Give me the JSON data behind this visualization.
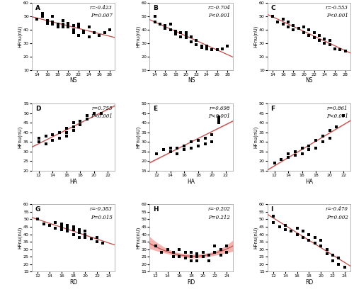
{
  "panels": [
    {
      "label": "A",
      "r": -0.423,
      "p": "P=0.007",
      "xlabel": "NS",
      "ylabel": "HFnu(nU)",
      "xlim": [
        13,
        29
      ],
      "ylim": [
        10,
        60
      ],
      "xticks": [
        14,
        16,
        18,
        20,
        22,
        24,
        26,
        28
      ],
      "yticks": [
        10,
        20,
        30,
        40,
        50,
        60
      ],
      "x": [
        14,
        15,
        15,
        16,
        16,
        17,
        17,
        17,
        18,
        18,
        19,
        19,
        19,
        20,
        20,
        20,
        21,
        21,
        21,
        22,
        22,
        22,
        23,
        23,
        24,
        24,
        25,
        26,
        27,
        28
      ],
      "y": [
        48,
        50,
        52,
        45,
        47,
        46,
        44,
        50,
        42,
        44,
        42,
        47,
        44,
        43,
        42,
        45,
        40,
        43,
        38,
        44,
        42,
        36,
        39,
        38,
        42,
        35,
        38,
        36,
        38,
        40
      ]
    },
    {
      "label": "B",
      "r": -0.704,
      "p": "P<0.001",
      "xlabel": "NS",
      "ylabel": "HFnu(nU)",
      "xlim": [
        13,
        29
      ],
      "ylim": [
        10,
        60
      ],
      "xticks": [
        14,
        16,
        18,
        20,
        22,
        24,
        26,
        28
      ],
      "yticks": [
        10,
        20,
        30,
        40,
        50,
        60
      ],
      "x": [
        14,
        14,
        15,
        16,
        16,
        17,
        17,
        18,
        18,
        19,
        19,
        20,
        20,
        20,
        21,
        21,
        22,
        22,
        23,
        23,
        24,
        24,
        25,
        26,
        27,
        28
      ],
      "y": [
        46,
        50,
        44,
        41,
        43,
        40,
        44,
        37,
        39,
        35,
        38,
        34,
        38,
        36,
        31,
        35,
        29,
        32,
        28,
        27,
        28,
        26,
        25,
        25,
        26,
        28
      ]
    },
    {
      "label": "C",
      "r": -0.553,
      "p": "P<0.001",
      "xlabel": "NS",
      "ylabel": "HFnu(nU)",
      "xlim": [
        13,
        29
      ],
      "ylim": [
        10,
        60
      ],
      "xticks": [
        14,
        16,
        18,
        20,
        22,
        24,
        26,
        28
      ],
      "yticks": [
        10,
        20,
        30,
        40,
        50,
        60
      ],
      "x": [
        14,
        15,
        16,
        16,
        17,
        17,
        18,
        18,
        19,
        20,
        20,
        21,
        21,
        22,
        22,
        23,
        23,
        24,
        24,
        25,
        25,
        26,
        27,
        28
      ],
      "y": [
        50,
        46,
        44,
        48,
        42,
        46,
        40,
        43,
        41,
        38,
        42,
        36,
        40,
        34,
        38,
        32,
        36,
        30,
        33,
        29,
        32,
        26,
        25,
        24
      ]
    },
    {
      "label": "D",
      "r": 0.755,
      "p": "P<0.001",
      "xlabel": "HA",
      "ylabel": "HFnu(nU)",
      "xlim": [
        11,
        23
      ],
      "ylim": [
        20,
        55
      ],
      "xticks": [
        12,
        14,
        16,
        18,
        20,
        22
      ],
      "yticks": [
        20,
        25,
        30,
        35,
        40,
        45,
        50,
        55
      ],
      "x": [
        12,
        12,
        13,
        13,
        14,
        14,
        15,
        15,
        16,
        16,
        16,
        17,
        17,
        17,
        18,
        18,
        19,
        19,
        20,
        21
      ],
      "y": [
        35,
        37,
        34,
        38,
        36,
        39,
        37,
        40,
        38,
        42,
        40,
        41,
        43,
        45,
        44,
        46,
        47,
        49,
        50,
        50
      ]
    },
    {
      "label": "E",
      "r": 0.698,
      "p": "P<0.001",
      "xlabel": "HA",
      "ylabel": "HFnu(nU)",
      "xlim": [
        11,
        23
      ],
      "ylim": [
        15,
        50
      ],
      "xticks": [
        12,
        14,
        16,
        18,
        20,
        22
      ],
      "yticks": [
        15,
        20,
        25,
        30,
        35,
        40,
        45,
        50
      ],
      "x": [
        12,
        13,
        14,
        14,
        15,
        15,
        16,
        16,
        17,
        17,
        18,
        18,
        19,
        19,
        20,
        20,
        21,
        21,
        21,
        21
      ],
      "y": [
        24,
        26,
        25,
        27,
        24,
        27,
        26,
        28,
        27,
        30,
        28,
        31,
        29,
        32,
        30,
        34,
        40,
        43,
        41,
        42
      ]
    },
    {
      "label": "F",
      "r": 0.861,
      "p": "P<0.001",
      "xlabel": "HA",
      "ylabel": "HFnu(nU)",
      "xlim": [
        11,
        23
      ],
      "ylim": [
        15,
        50
      ],
      "xticks": [
        12,
        14,
        16,
        18,
        20,
        22
      ],
      "yticks": [
        15,
        20,
        25,
        30,
        35,
        40,
        45,
        50
      ],
      "x": [
        12,
        13,
        14,
        14,
        15,
        15,
        16,
        16,
        17,
        17,
        18,
        18,
        19,
        19,
        20,
        20,
        21,
        22
      ],
      "y": [
        19,
        21,
        22,
        24,
        23,
        25,
        24,
        27,
        26,
        28,
        27,
        31,
        30,
        33,
        32,
        36,
        38,
        44
      ]
    },
    {
      "label": "G",
      "r": -0.383,
      "p": "P=0.015",
      "xlabel": "RD",
      "ylabel": "HFnu(nU)",
      "xlim": [
        11,
        25
      ],
      "ylim": [
        15,
        60
      ],
      "xticks": [
        12,
        14,
        16,
        18,
        20,
        22,
        24
      ],
      "yticks": [
        15,
        20,
        25,
        30,
        35,
        40,
        45,
        50,
        55,
        60
      ],
      "x": [
        12,
        13,
        14,
        15,
        15,
        16,
        16,
        16,
        17,
        17,
        17,
        18,
        18,
        18,
        19,
        19,
        19,
        20,
        20,
        20,
        21,
        22,
        22,
        23
      ],
      "y": [
        50,
        47,
        46,
        44,
        48,
        43,
        45,
        47,
        42,
        44,
        46,
        40,
        43,
        45,
        38,
        41,
        43,
        40,
        38,
        42,
        37,
        35,
        38,
        34
      ]
    },
    {
      "label": "H",
      "r": -0.202,
      "p": "P=0.212",
      "xlabel": "RD",
      "ylabel": "HFnu(nU)",
      "xlim": [
        11,
        25
      ],
      "ylim": [
        15,
        60
      ],
      "xticks": [
        12,
        14,
        16,
        18,
        20,
        22,
        24
      ],
      "yticks": [
        15,
        20,
        25,
        30,
        35,
        40,
        45,
        50,
        55,
        60
      ],
      "x": [
        12,
        13,
        14,
        15,
        15,
        16,
        16,
        17,
        17,
        18,
        18,
        18,
        19,
        19,
        19,
        20,
        20,
        21,
        21,
        22,
        22,
        23,
        23,
        24,
        24
      ],
      "y": [
        32,
        28,
        30,
        25,
        28,
        25,
        30,
        24,
        28,
        22,
        25,
        28,
        22,
        25,
        27,
        25,
        28,
        22,
        26,
        28,
        32,
        26,
        30,
        28,
        32
      ]
    },
    {
      "label": "I",
      "r": -0.47,
      "p": "P=0.002",
      "xlabel": "RD",
      "ylabel": "HFnu(nU)",
      "xlim": [
        11,
        25
      ],
      "ylim": [
        15,
        60
      ],
      "xticks": [
        12,
        14,
        16,
        18,
        20,
        22,
        24
      ],
      "yticks": [
        15,
        20,
        25,
        30,
        35,
        40,
        45,
        50,
        55,
        60
      ],
      "x": [
        12,
        12,
        13,
        14,
        14,
        15,
        16,
        16,
        17,
        17,
        18,
        18,
        19,
        19,
        20,
        20,
        21,
        21,
        22,
        22,
        23,
        23,
        24
      ],
      "y": [
        52,
        48,
        45,
        43,
        46,
        42,
        40,
        44,
        38,
        42,
        36,
        40,
        34,
        38,
        32,
        36,
        27,
        30,
        22,
        26,
        20,
        24,
        18
      ]
    }
  ],
  "line_color": "#c0504d",
  "band_color": "#f2a6a4",
  "scatter_color": "black",
  "scatter_size": 6,
  "bg_color": "white",
  "border_color": "#999999",
  "poly_panel": "H"
}
